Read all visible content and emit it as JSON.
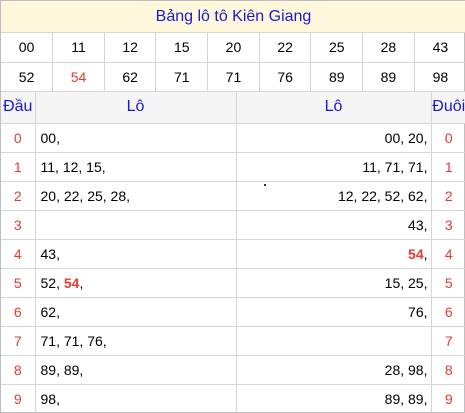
{
  "title": "Bảng lô tô Kiên Giang",
  "numbers": [
    [
      "00",
      "11",
      "12",
      "15",
      "20",
      "22",
      "25",
      "28",
      "43"
    ],
    [
      "52",
      "54",
      "62",
      "71",
      "71",
      "76",
      "89",
      "89",
      "98"
    ]
  ],
  "highlight_color": "#e53935",
  "title_color": "#1a1acc",
  "headers": {
    "dau": "Đầu",
    "lo_left": "Lô",
    "lo_right": "Lô",
    "duoi": "Đuôi"
  },
  "rows": [
    {
      "dau": "0",
      "left": "00,",
      "right": "00, 20,",
      "duoi": "0"
    },
    {
      "dau": "1",
      "left": "11, 12, 15,",
      "right": "11, 71, 71,",
      "duoi": "1"
    },
    {
      "dau": "2",
      "left": "20, 22, 25, 28,",
      "right": "12, 22, 52, 62,",
      "duoi": "2"
    },
    {
      "dau": "3",
      "left": "",
      "right": "43,",
      "duoi": "3"
    },
    {
      "dau": "4",
      "left": "43,",
      "right_bold": "54",
      "right": ",",
      "duoi": "4"
    },
    {
      "dau": "5",
      "left": "52,",
      "left_bold": "54",
      "left_after": ",",
      "right": "15, 25,",
      "duoi": "5"
    },
    {
      "dau": "6",
      "left": "62,",
      "right": "76,",
      "duoi": "6"
    },
    {
      "dau": "7",
      "left": "71, 71, 76,",
      "right": "",
      "duoi": "7"
    },
    {
      "dau": "8",
      "left": "89, 89,",
      "right": "28, 98,",
      "duoi": "8"
    },
    {
      "dau": "9",
      "left": "98,",
      "right": "89, 89,",
      "duoi": "9"
    }
  ]
}
